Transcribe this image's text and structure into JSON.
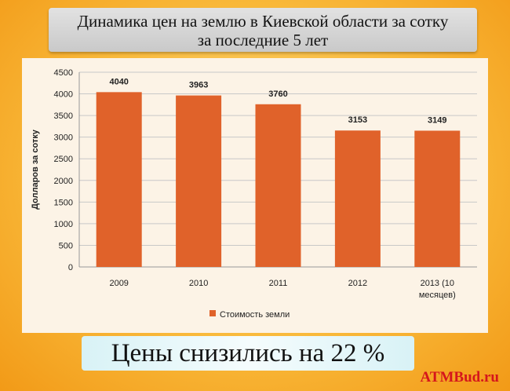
{
  "title_line1": "Динамика цен на землю в Киевской области за сотку",
  "title_line2": "за последние 5 лет",
  "chart_data": {
    "type": "bar",
    "categories": [
      "2009",
      "2010",
      "2011",
      "2012",
      "2013 (10 месяцев)"
    ],
    "values": [
      4040,
      3963,
      3760,
      3153,
      3149
    ],
    "ylabel": "Долларов за сотку",
    "ylim": [
      0,
      4500
    ],
    "yticks": [
      0,
      500,
      1000,
      1500,
      2000,
      2500,
      3000,
      3500,
      4000,
      4500
    ],
    "legend": "Стоимость земли",
    "legend_position": "bottom",
    "bar_color": "#e0622a",
    "grid": true
  },
  "conclusion": "Цены снизились на 22 %",
  "watermark": "ATMBud.ru"
}
